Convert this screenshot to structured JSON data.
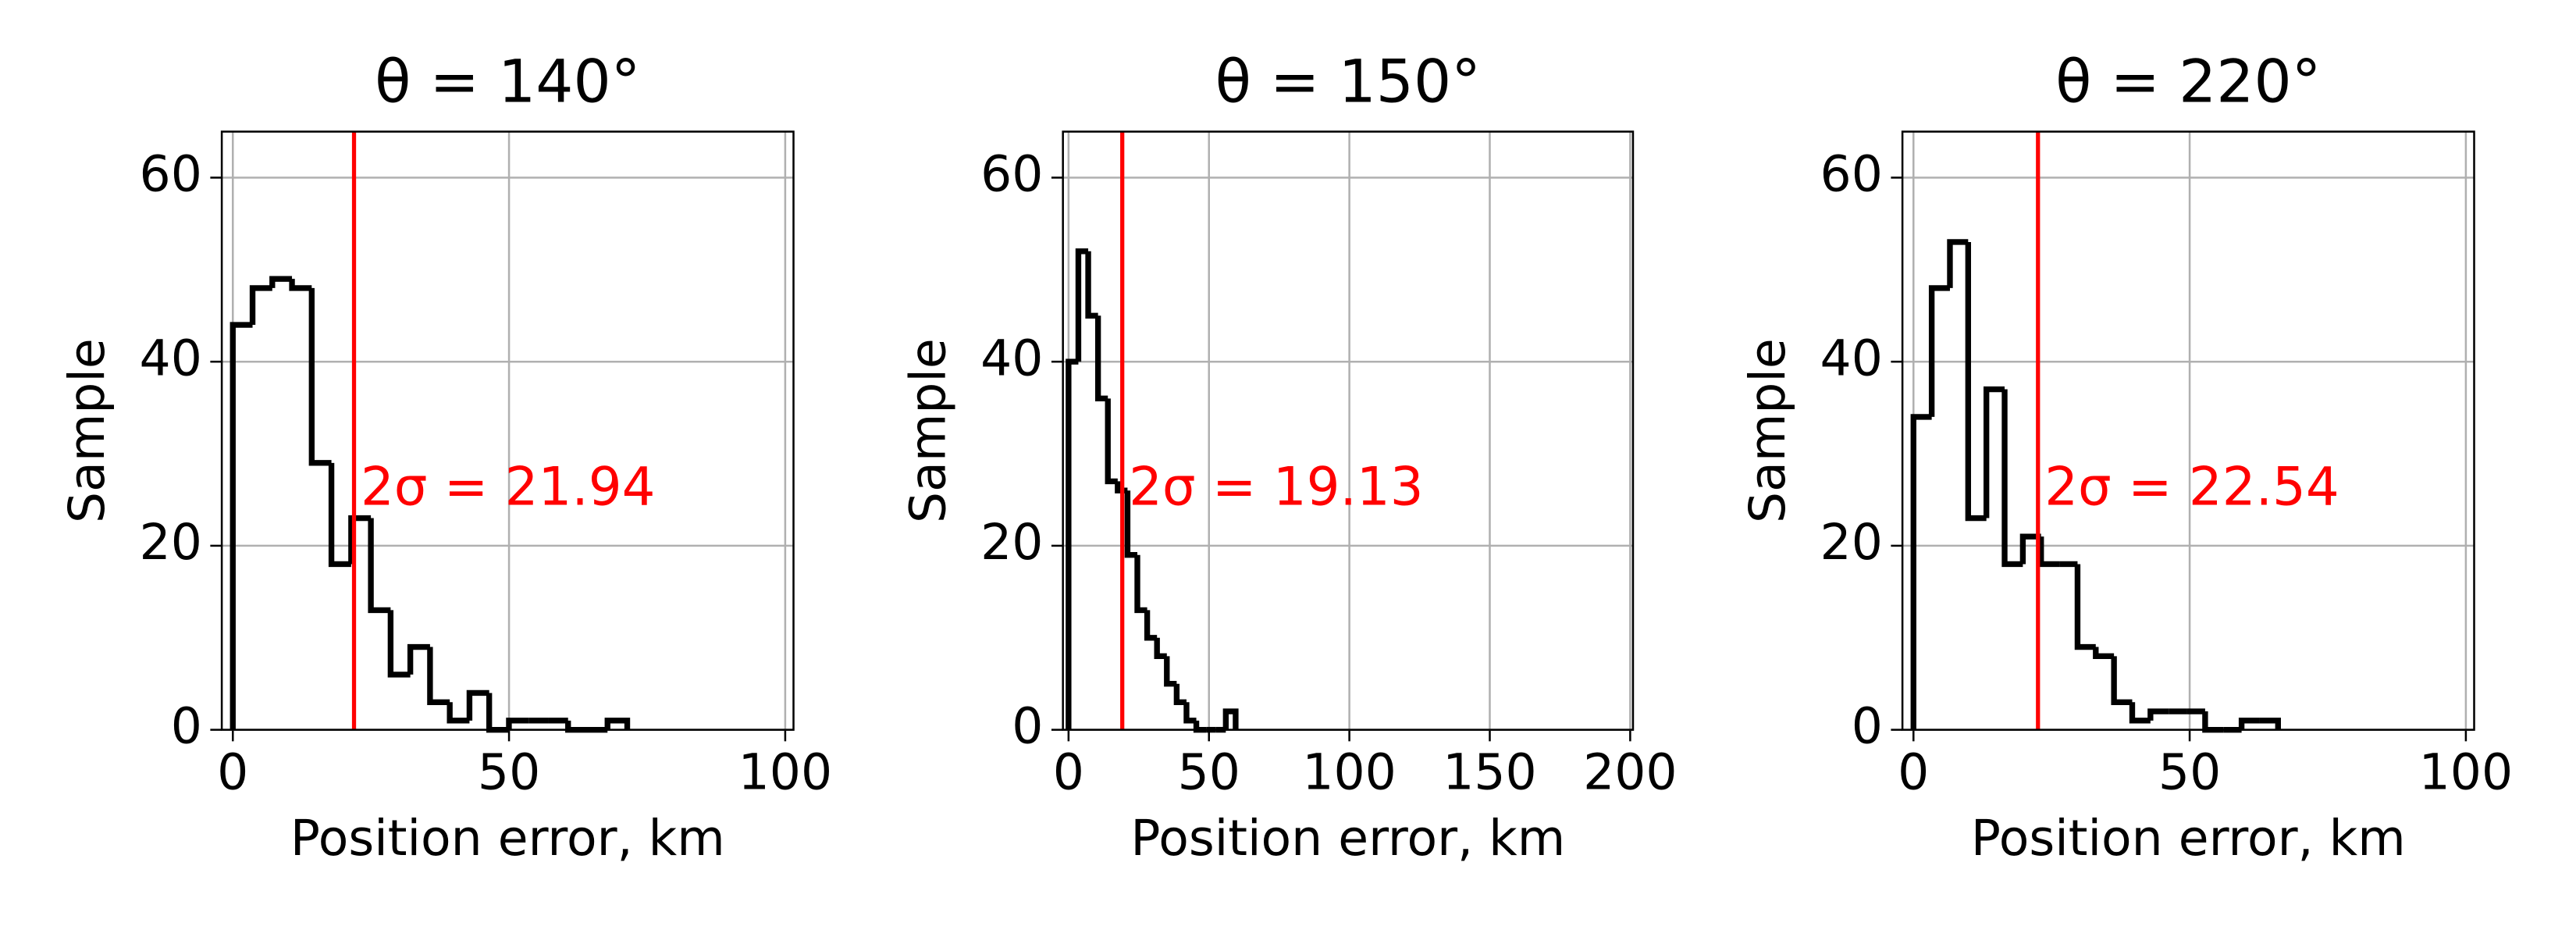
{
  "chart_data": [
    {
      "type": "histogram",
      "title": "θ = 140°",
      "xlabel": "Position error, km",
      "ylabel": "Sample",
      "bins": [
        0,
        3.57,
        7.14,
        10.71,
        14.28,
        17.85,
        21.42,
        24.99,
        28.56,
        32.13,
        35.7,
        39.27,
        42.84,
        46.41,
        49.98,
        53.55,
        57.12,
        60.69,
        64.26,
        67.83,
        71.4
      ],
      "counts": [
        44,
        48,
        49,
        48,
        29,
        18,
        23,
        13,
        6,
        9,
        3,
        1,
        4,
        0,
        1,
        1,
        1,
        0,
        0,
        1
      ],
      "color": "#000000",
      "xlim": [
        -2,
        101.5
      ],
      "ylim": [
        0,
        65
      ],
      "xticks": [
        0,
        50,
        100
      ],
      "yticks": [
        0,
        20,
        40,
        60
      ],
      "grid": true,
      "vline": {
        "x": 21.94,
        "color": "#ff0000",
        "label": "2σ = 21.94"
      }
    },
    {
      "type": "histogram",
      "title": "θ = 150°",
      "xlabel": "Position error, km",
      "ylabel": "Sample",
      "bins": [
        0,
        3.5,
        7,
        10.5,
        14,
        17.5,
        21,
        24.5,
        28,
        31.5,
        35,
        38.5,
        42,
        45.5,
        49,
        52.5,
        56,
        59.5
      ],
      "counts": [
        40,
        52,
        45,
        36,
        27,
        26,
        19,
        13,
        10,
        8,
        5,
        3,
        1,
        0,
        0,
        0,
        2
      ],
      "color": "#000000",
      "xlim": [
        -2,
        201
      ],
      "ylim": [
        0,
        65
      ],
      "xticks": [
        0,
        50,
        100,
        150,
        200
      ],
      "yticks": [
        0,
        20,
        40,
        60
      ],
      "grid": true,
      "vline": {
        "x": 19.13,
        "color": "#ff0000",
        "label": "2σ = 19.13"
      }
    },
    {
      "type": "histogram",
      "title": "θ = 220°",
      "xlabel": "Position error, km",
      "ylabel": "Sample",
      "bins": [
        0,
        3.3,
        6.6,
        9.9,
        13.2,
        16.5,
        19.8,
        23.1,
        26.4,
        29.7,
        33,
        36.3,
        39.6,
        42.9,
        46.2,
        49.5,
        52.8,
        56.1,
        59.4,
        62.7,
        66
      ],
      "counts": [
        34,
        48,
        53,
        23,
        37,
        18,
        21,
        18,
        18,
        9,
        8,
        3,
        1,
        2,
        2,
        2,
        0,
        0,
        1,
        1
      ],
      "color": "#000000",
      "xlim": [
        -2,
        101.5
      ],
      "ylim": [
        0,
        65
      ],
      "xticks": [
        0,
        50,
        100
      ],
      "yticks": [
        0,
        20,
        40,
        60
      ],
      "grid": true,
      "vline": {
        "x": 22.54,
        "color": "#ff0000",
        "label": "2σ = 22.54"
      }
    }
  ]
}
